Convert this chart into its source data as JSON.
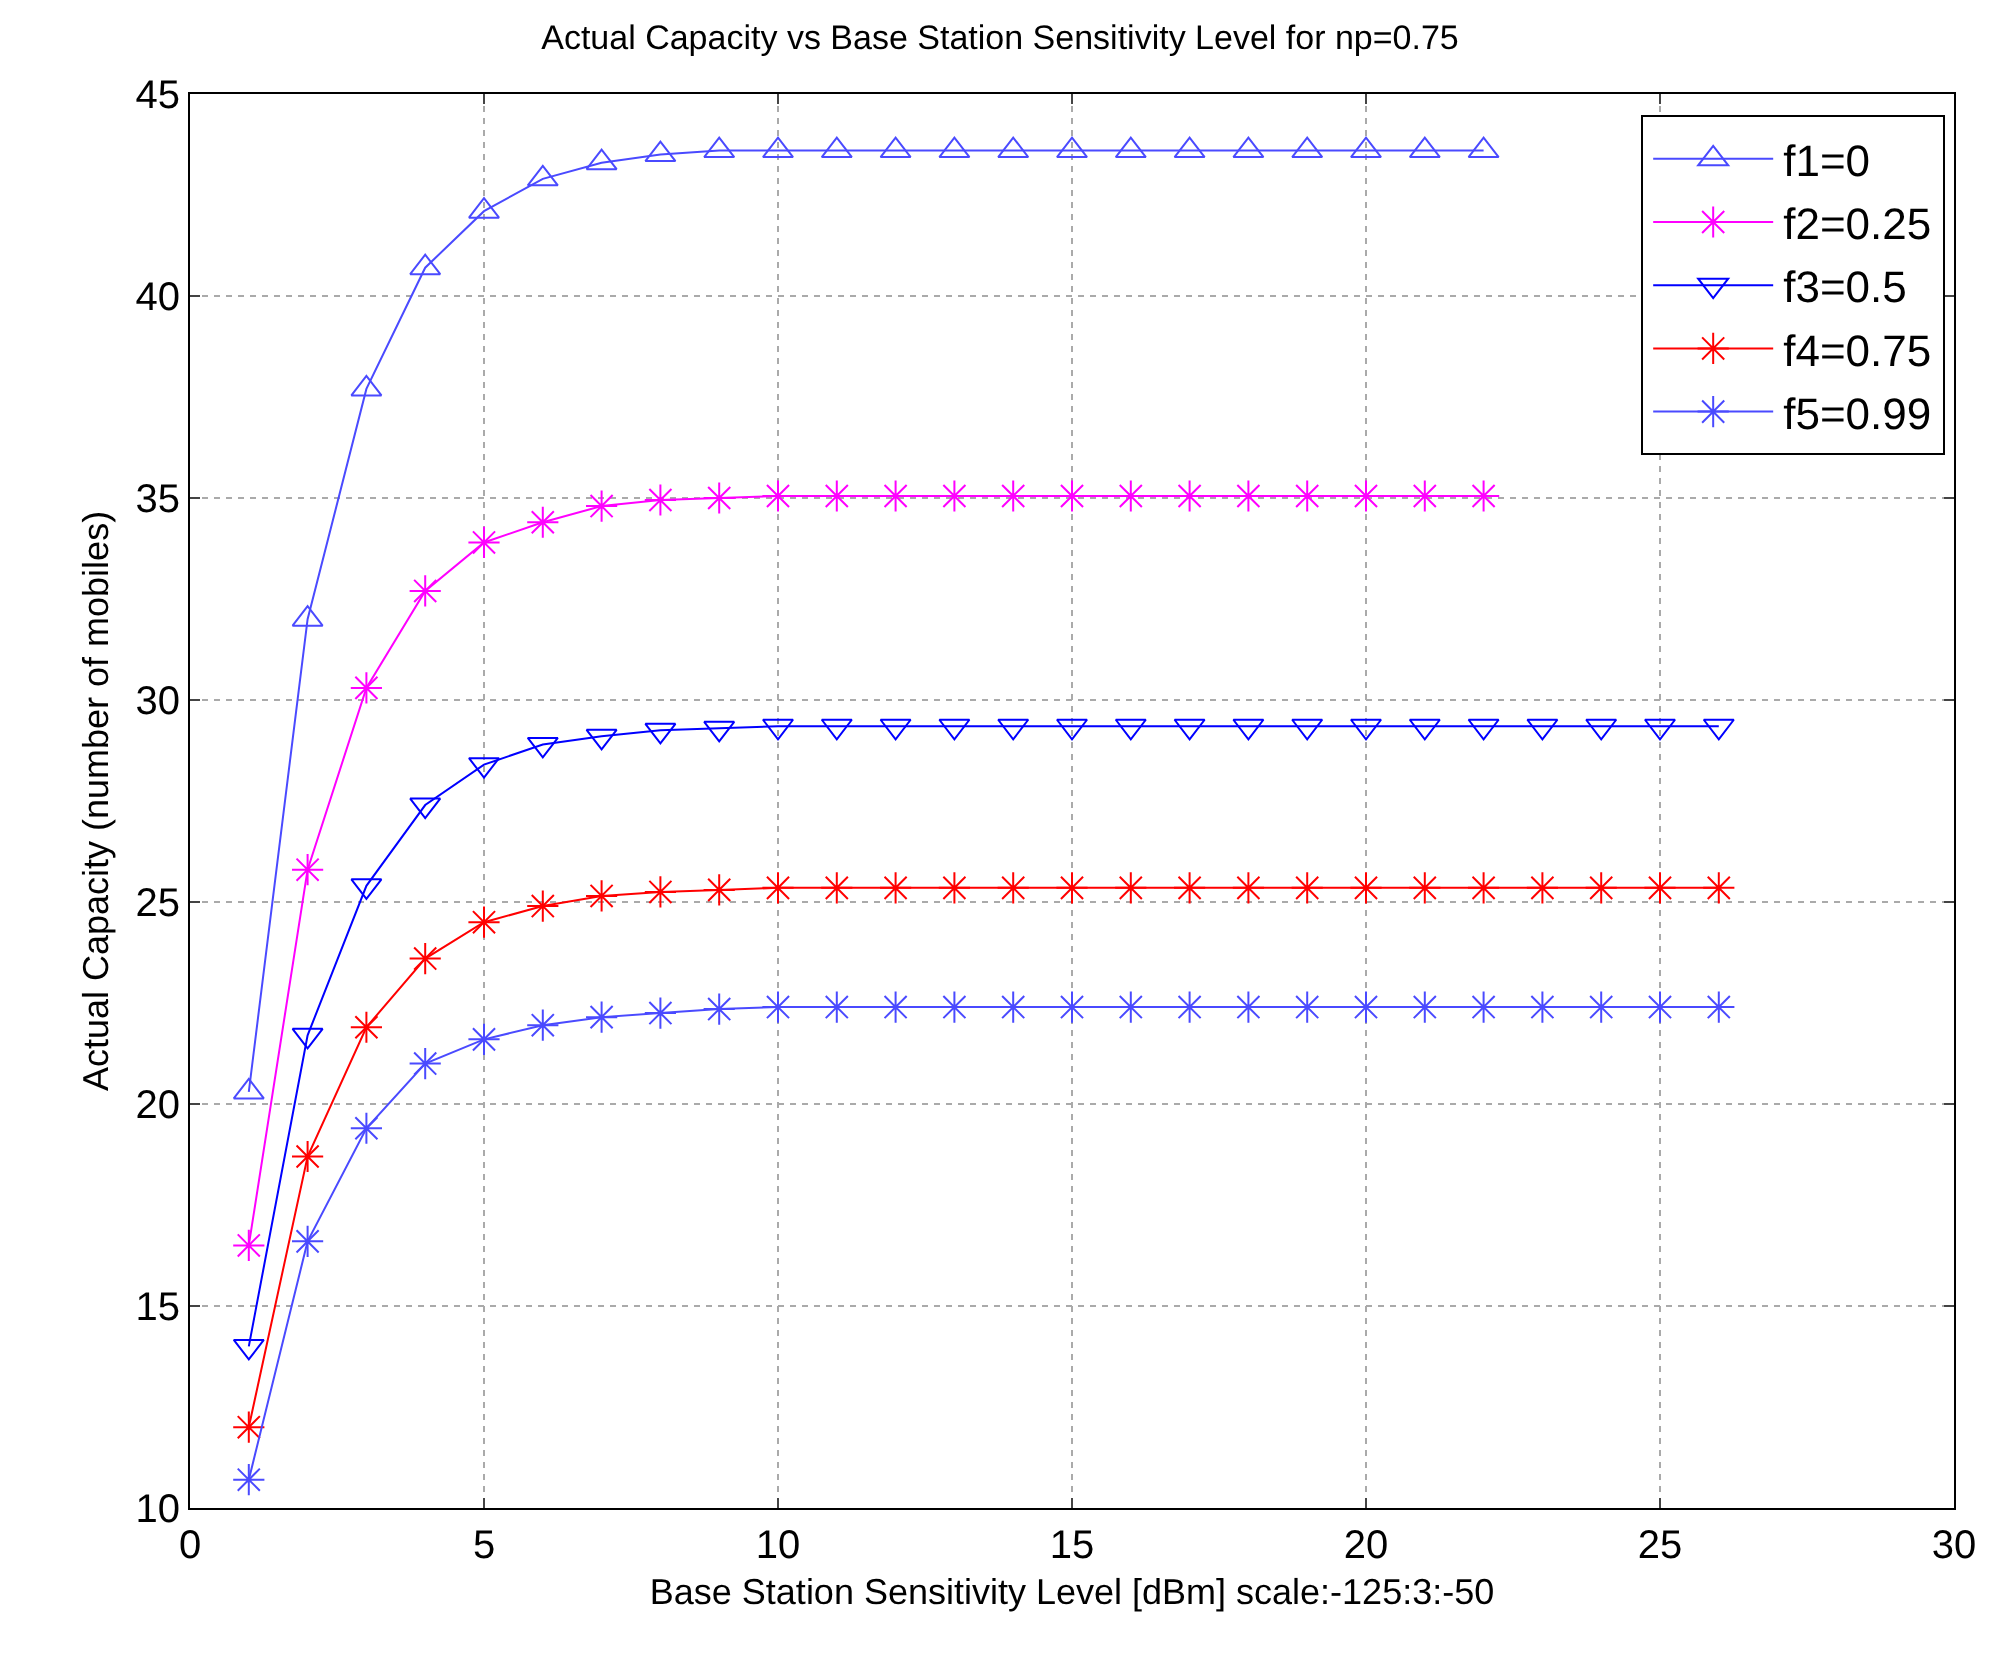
{
  "chart_data": {
    "type": "line",
    "title": "Actual Capacity vs Base Station Sensitivity Level for np=0.75",
    "xlabel": "Base Station Sensitivity Level [dBm] scale:-125:3:-50",
    "ylabel": "Actual Capacity (number of mobiles)",
    "x": [
      1,
      2,
      3,
      4,
      5,
      6,
      7,
      8,
      9,
      10,
      11,
      12,
      13,
      14,
      15,
      16,
      17,
      18,
      19,
      20,
      21,
      22,
      23,
      24,
      25,
      26
    ],
    "series": [
      {
        "name": "f1=0",
        "color": "#4a4aff",
        "marker": "triangle",
        "values": [
          20.3,
          32.0,
          37.7,
          40.7,
          42.1,
          42.9,
          43.3,
          43.5,
          43.6,
          43.6,
          43.6,
          43.6,
          43.6,
          43.6,
          43.6,
          43.6,
          43.6,
          43.6,
          43.6,
          43.6,
          43.6,
          43.6,
          null,
          null,
          null,
          null
        ]
      },
      {
        "name": "f2=0.25",
        "color": "#ff00ff",
        "marker": "cross",
        "values": [
          16.5,
          25.8,
          30.3,
          32.7,
          33.9,
          34.4,
          34.8,
          34.95,
          35.0,
          35.05,
          35.05,
          35.05,
          35.05,
          35.05,
          35.05,
          35.05,
          35.05,
          35.05,
          35.05,
          35.05,
          35.05,
          35.05,
          null,
          null,
          null,
          null
        ]
      },
      {
        "name": "f3=0.5",
        "color": "#0000ff",
        "marker": "triangle-down",
        "values": [
          14.0,
          21.7,
          25.4,
          27.4,
          28.4,
          28.9,
          29.1,
          29.25,
          29.3,
          29.35,
          29.35,
          29.35,
          29.35,
          29.35,
          29.35,
          29.35,
          29.35,
          29.35,
          29.35,
          29.35,
          29.35,
          29.35,
          29.35,
          29.35,
          29.35,
          29.35
        ]
      },
      {
        "name": "f4=0.75",
        "color": "#ff0000",
        "marker": "cross",
        "values": [
          12.0,
          18.7,
          21.9,
          23.6,
          24.5,
          24.9,
          25.15,
          25.25,
          25.3,
          25.35,
          25.35,
          25.35,
          25.35,
          25.35,
          25.35,
          25.35,
          25.35,
          25.35,
          25.35,
          25.35,
          25.35,
          25.35,
          25.35,
          25.35,
          25.35,
          25.35
        ]
      },
      {
        "name": "f5=0.99",
        "color": "#4a4aff",
        "marker": "cross",
        "values": [
          10.7,
          16.6,
          19.4,
          21.0,
          21.6,
          21.95,
          22.15,
          22.25,
          22.35,
          22.4,
          22.4,
          22.4,
          22.4,
          22.4,
          22.4,
          22.4,
          22.4,
          22.4,
          22.4,
          22.4,
          22.4,
          22.4,
          22.4,
          22.4,
          22.4,
          22.4
        ]
      }
    ],
    "xlim": [
      0,
      30
    ],
    "xticks": [
      0,
      5,
      10,
      15,
      20,
      25,
      30
    ],
    "ylim": [
      10,
      45
    ],
    "yticks": [
      10,
      15,
      20,
      25,
      30,
      35,
      40,
      45
    ],
    "grid": true,
    "legend": "top right",
    "line_style": "solid"
  }
}
